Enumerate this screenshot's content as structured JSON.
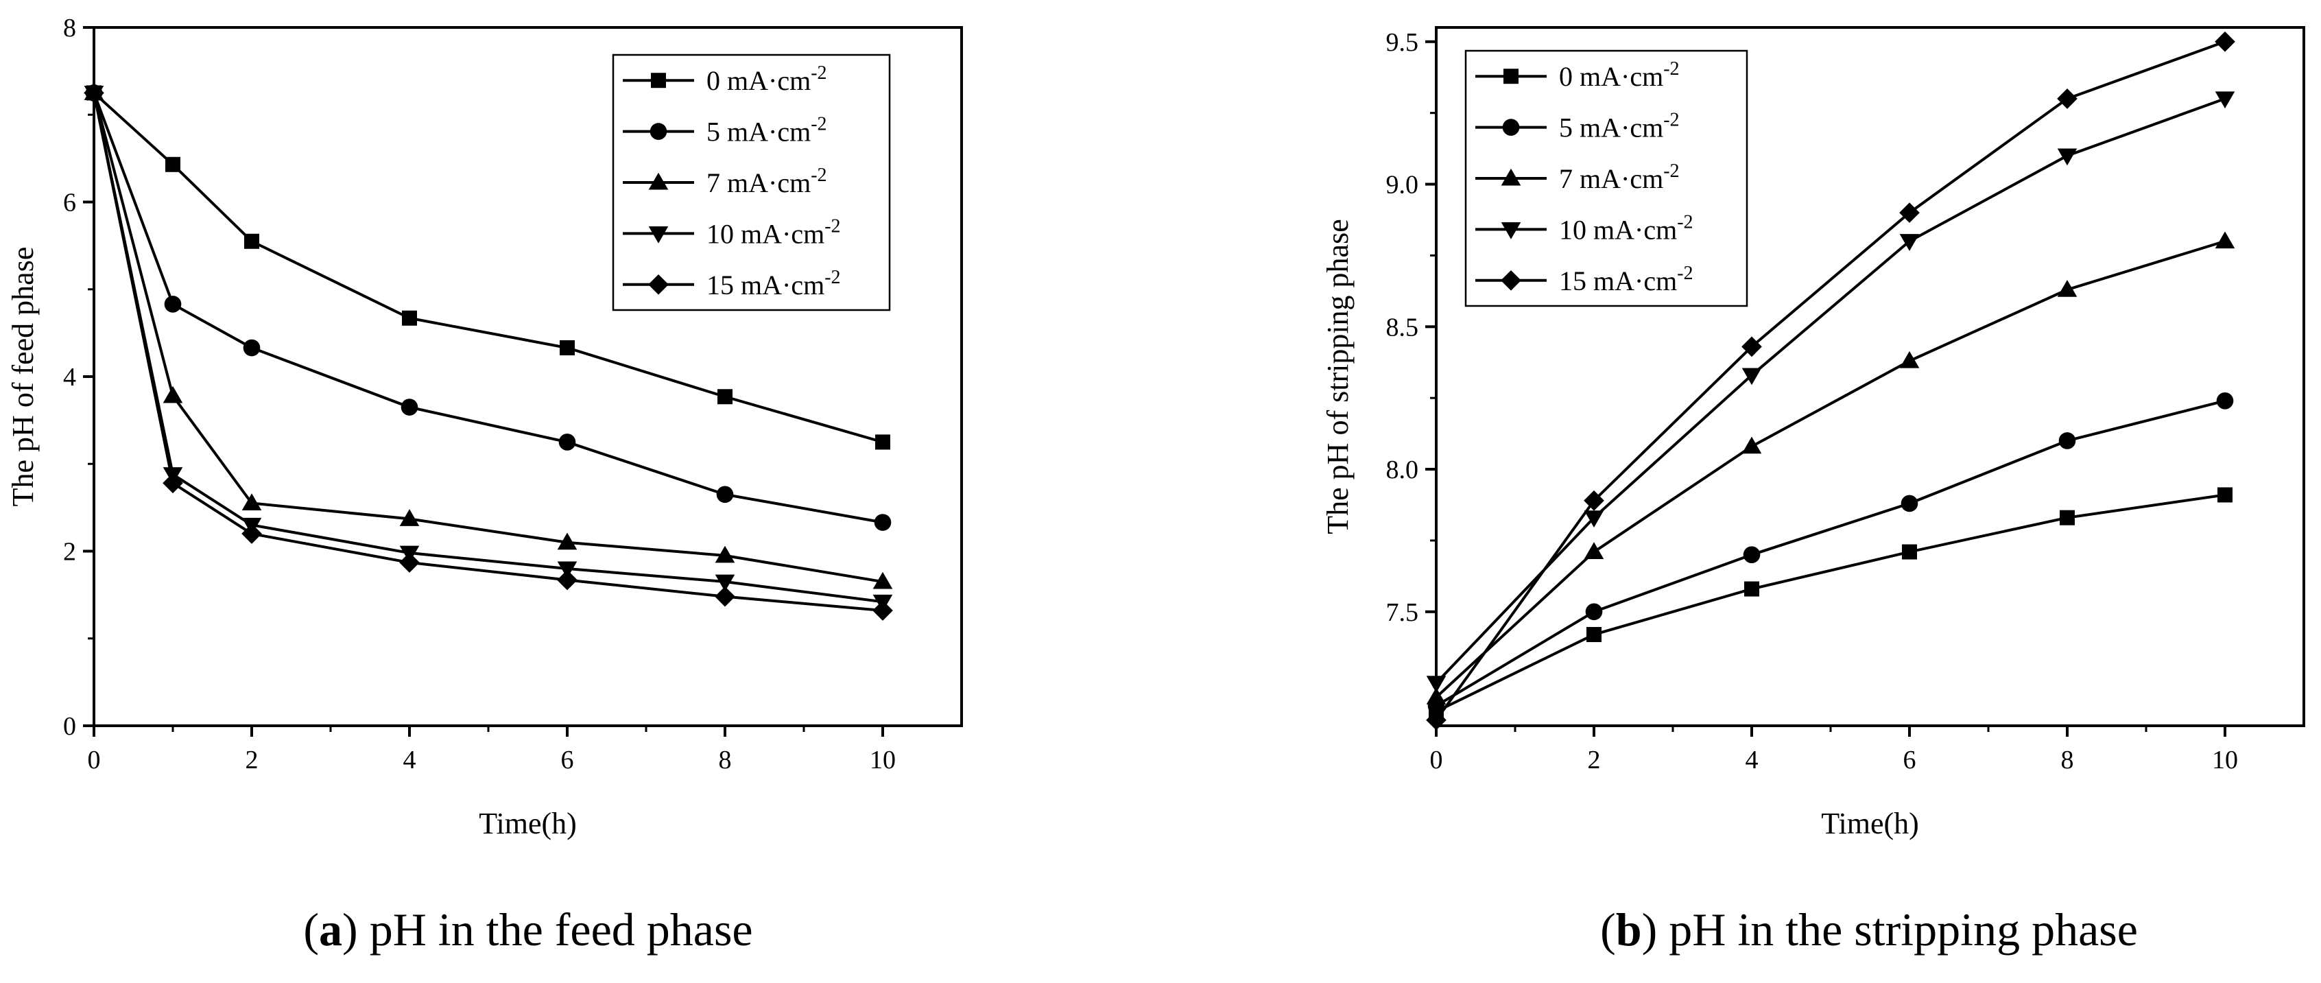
{
  "chart_data": [
    {
      "id": "a",
      "type": "line",
      "caption_letter": "a",
      "caption_text": "pH in the feed phase",
      "xlabel": "Time(h)",
      "ylabel": "The pH of feed phase",
      "xlim": [
        0,
        11
      ],
      "ylim": [
        0,
        8
      ],
      "xticks": [
        0,
        2,
        4,
        6,
        8,
        10
      ],
      "xtick_labels": [
        "0",
        "2",
        "4",
        "6",
        "8",
        "10"
      ],
      "yticks": [
        0,
        2,
        4,
        6,
        8
      ],
      "ytick_labels": [
        "0",
        "2",
        "4",
        "6",
        "8"
      ],
      "legend_position": "top-right",
      "series": [
        {
          "name": "0 mA·cm",
          "sup": "-2",
          "marker": "square",
          "x": [
            0,
            1,
            2,
            4,
            6,
            8,
            10
          ],
          "y": [
            7.25,
            6.43,
            5.55,
            4.67,
            4.33,
            3.77,
            3.25
          ]
        },
        {
          "name": "5 mA·cm",
          "sup": "-2",
          "marker": "circle",
          "x": [
            0,
            1,
            2,
            4,
            6,
            8,
            10
          ],
          "y": [
            7.25,
            4.83,
            4.33,
            3.65,
            3.25,
            2.65,
            2.33
          ]
        },
        {
          "name": "7 mA·cm",
          "sup": "-2",
          "marker": "triangle-up",
          "x": [
            0,
            1,
            2,
            4,
            6,
            8,
            10
          ],
          "y": [
            7.25,
            3.78,
            2.55,
            2.37,
            2.1,
            1.95,
            1.65
          ]
        },
        {
          "name": "10 mA·cm",
          "sup": "-2",
          "marker": "triangle-down",
          "x": [
            0,
            1,
            2,
            4,
            6,
            8,
            10
          ],
          "y": [
            7.25,
            2.88,
            2.3,
            1.98,
            1.8,
            1.65,
            1.42
          ]
        },
        {
          "name": "15 mA·cm",
          "sup": "-2",
          "marker": "diamond",
          "x": [
            0,
            1,
            2,
            4,
            6,
            8,
            10
          ],
          "y": [
            7.25,
            2.78,
            2.2,
            1.87,
            1.67,
            1.48,
            1.32
          ]
        }
      ]
    },
    {
      "id": "b",
      "type": "line",
      "caption_letter": "b",
      "caption_text": "pH in the stripping phase",
      "xlabel": "Time(h)",
      "ylabel": "The pH of stripping phase",
      "xlim": [
        0,
        11
      ],
      "ylim": [
        7.1,
        9.55
      ],
      "xticks": [
        0,
        2,
        4,
        6,
        8,
        10
      ],
      "xtick_labels": [
        "0",
        "2",
        "4",
        "6",
        "8",
        "10"
      ],
      "yticks": [
        7.5,
        8.0,
        8.5,
        9.0,
        9.5
      ],
      "ytick_labels": [
        "7.5",
        "8.0",
        "8.5",
        "9.0",
        "9.5"
      ],
      "legend_position": "top-left",
      "series": [
        {
          "name": "0 mA·cm",
          "sup": "-2",
          "marker": "square",
          "x": [
            0,
            2,
            4,
            6,
            8,
            10
          ],
          "y": [
            7.15,
            7.42,
            7.58,
            7.71,
            7.83,
            7.91
          ]
        },
        {
          "name": "5 mA·cm",
          "sup": "-2",
          "marker": "circle",
          "x": [
            0,
            2,
            4,
            6,
            8,
            10
          ],
          "y": [
            7.17,
            7.5,
            7.7,
            7.88,
            8.1,
            8.24
          ]
        },
        {
          "name": "7 mA·cm",
          "sup": "-2",
          "marker": "triangle-up",
          "x": [
            0,
            2,
            4,
            6,
            8,
            10
          ],
          "y": [
            7.2,
            7.71,
            8.08,
            8.38,
            8.63,
            8.8
          ]
        },
        {
          "name": "10 mA·cm",
          "sup": "-2",
          "marker": "triangle-down",
          "x": [
            0,
            2,
            4,
            6,
            8,
            10
          ],
          "y": [
            7.25,
            7.83,
            8.33,
            8.8,
            9.1,
            9.3
          ]
        },
        {
          "name": "15 mA·cm",
          "sup": "-2",
          "marker": "diamond",
          "x": [
            0,
            2,
            4,
            6,
            8,
            10
          ],
          "y": [
            7.12,
            7.89,
            8.43,
            8.9,
            9.3,
            9.5
          ]
        }
      ]
    }
  ]
}
